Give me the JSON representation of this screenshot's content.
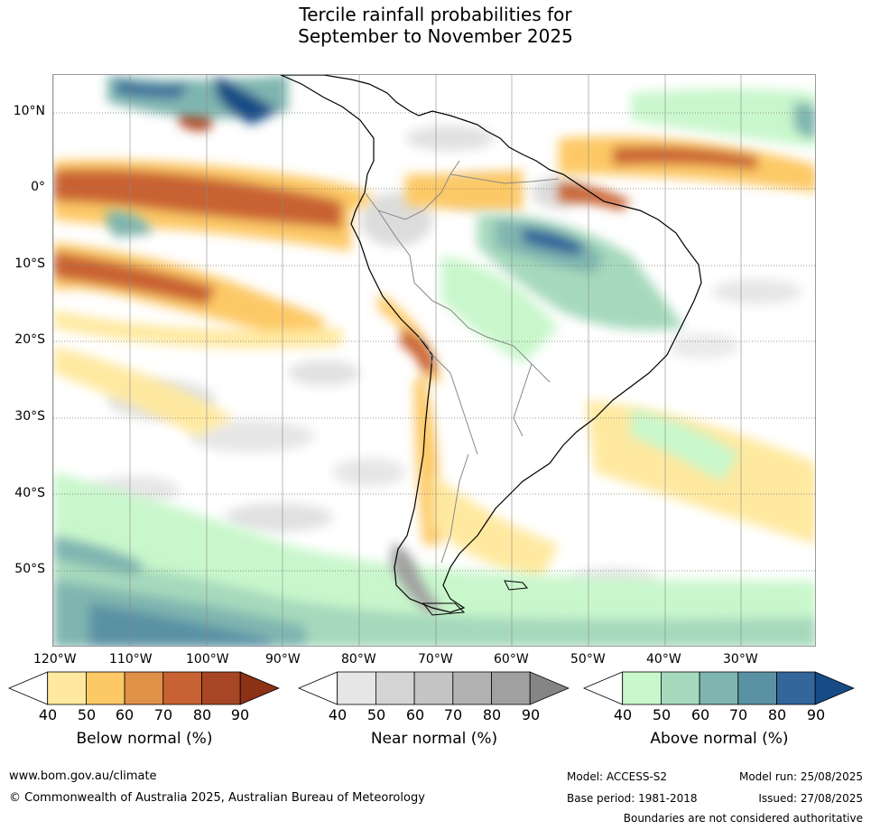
{
  "title": {
    "line1": "Tercile rainfall probabilities for",
    "line2": "September to November 2025"
  },
  "map": {
    "lat_labels": [
      "10°N",
      "0°",
      "10°S",
      "20°S",
      "30°S",
      "40°S",
      "50°S"
    ],
    "lon_labels": [
      "120°W",
      "110°W",
      "100°W",
      "90°W",
      "80°W",
      "70°W",
      "60°W",
      "50°W",
      "40°W",
      "30°W"
    ],
    "colors": {
      "land_outline": "#000000",
      "border": "#888888",
      "grid": "#777777"
    }
  },
  "colorbars": [
    {
      "label": "Below normal (%)",
      "ticks": [
        "40",
        "50",
        "60",
        "70",
        "80",
        "90"
      ],
      "colors": [
        "#ffffff",
        "#ffe9a0",
        "#fdc966",
        "#e09148",
        "#c96232",
        "#a74624",
        "#8c3016"
      ]
    },
    {
      "label": "Near normal (%)",
      "ticks": [
        "40",
        "50",
        "60",
        "70",
        "80",
        "90"
      ],
      "colors": [
        "#ffffff",
        "#e6e6e6",
        "#d4d4d4",
        "#c4c4c4",
        "#b2b2b2",
        "#a0a0a0",
        "#858585"
      ]
    },
    {
      "label": "Above normal (%)",
      "ticks": [
        "40",
        "50",
        "60",
        "70",
        "80",
        "90"
      ],
      "colors": [
        "#ffffff",
        "#c9f7cc",
        "#a6d9bc",
        "#7fb5b0",
        "#5a92a4",
        "#33669a",
        "#164b86"
      ]
    }
  ],
  "footer": {
    "website": "www.bom.gov.au/climate",
    "copyright": "© Commonwealth of Australia 2025, Australian Bureau of Meteorology",
    "model": "Model: ACCESS-S2",
    "base_period": "Base period: 1981-2018",
    "model_run": "Model run: 25/08/2025",
    "issued": "Issued: 27/08/2025",
    "disclaimer": "Boundaries are not considered authoritative"
  }
}
